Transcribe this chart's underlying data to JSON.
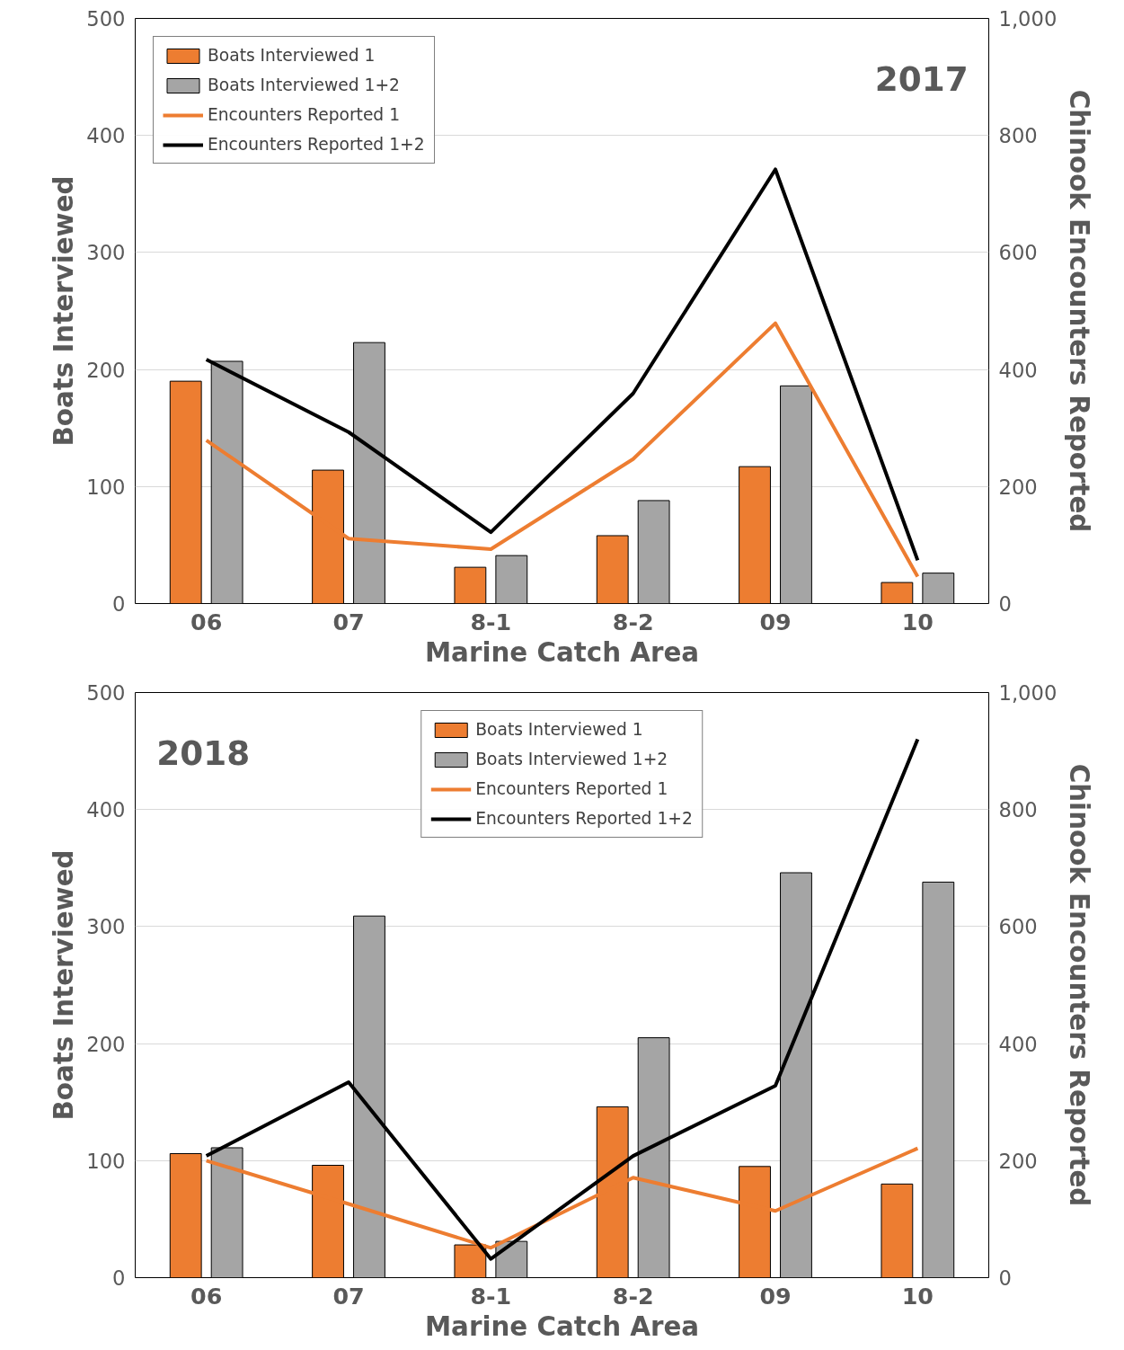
{
  "chart_data": [
    {
      "type": "bar",
      "categories": [
        "06",
        "07",
        "8-1",
        "8-2",
        "09",
        "10"
      ],
      "xlabel": "Marine Catch Area",
      "ylabel": "Boats Interviewed",
      "y2label": "Chinook Encounters Reported",
      "ylim": [
        0,
        500
      ],
      "yticks": [
        0,
        100,
        200,
        300,
        400,
        500
      ],
      "y2lim": [
        0,
        1000
      ],
      "y2ticks": [
        {
          "value": 0,
          "label": "0"
        },
        {
          "value": 200,
          "label": "200"
        },
        {
          "value": 400,
          "label": "400"
        },
        {
          "value": 600,
          "label": "600"
        },
        {
          "value": 800,
          "label": "800"
        },
        {
          "value": 1000,
          "label": "1,000"
        }
      ],
      "grid": "y",
      "legend": "top left",
      "annotations": [
        "2017"
      ],
      "series": [
        {
          "name": "Boats Interviewed 1",
          "color": "#ed7d31",
          "values": [
            190,
            114,
            31,
            58,
            117,
            18
          ]
        },
        {
          "name": "Boats Interviewed 1+2",
          "color": "#a5a5a5",
          "values": [
            207,
            223,
            41,
            88,
            186,
            26
          ]
        },
        {
          "name": "Encounters Reported 1",
          "type": "line",
          "axis": "y2",
          "color": "#ed7d31",
          "values": [
            279,
            111,
            93,
            247,
            479,
            46
          ]
        },
        {
          "name": "Encounters Reported 1+2",
          "type": "line",
          "axis": "y2",
          "color": "#000000",
          "values": [
            417,
            293,
            122,
            359,
            742,
            74
          ]
        }
      ]
    },
    {
      "type": "bar",
      "categories": [
        "06",
        "07",
        "8-1",
        "8-2",
        "09",
        "10"
      ],
      "xlabel": "Marine Catch Area",
      "ylabel": "Boats Interviewed",
      "y2label": "Chinook Encounters Reported",
      "ylim": [
        0,
        500
      ],
      "yticks": [
        0,
        100,
        200,
        300,
        400,
        500
      ],
      "y2lim": [
        0,
        1000
      ],
      "y2ticks": [
        {
          "value": 0,
          "label": "0"
        },
        {
          "value": 200,
          "label": "200"
        },
        {
          "value": 400,
          "label": "400"
        },
        {
          "value": 600,
          "label": "600"
        },
        {
          "value": 800,
          "label": "800"
        },
        {
          "value": 1000,
          "label": "1,000"
        }
      ],
      "grid": "y",
      "legend": "top",
      "annotations": [
        "2018"
      ],
      "series": [
        {
          "name": "Boats Interviewed 1",
          "color": "#ed7d31",
          "values": [
            106,
            96,
            28,
            146,
            95,
            80
          ]
        },
        {
          "name": "Boats Interviewed 1+2",
          "color": "#a5a5a5",
          "values": [
            111,
            309,
            31,
            205,
            346,
            338
          ]
        },
        {
          "name": "Encounters Reported 1",
          "type": "line",
          "axis": "y2",
          "color": "#ed7d31",
          "values": [
            200,
            126,
            51,
            171,
            114,
            221
          ]
        },
        {
          "name": "Encounters Reported 1+2",
          "type": "line",
          "axis": "y2",
          "color": "#000000",
          "values": [
            208,
            334,
            32,
            208,
            328,
            920
          ]
        }
      ]
    }
  ]
}
